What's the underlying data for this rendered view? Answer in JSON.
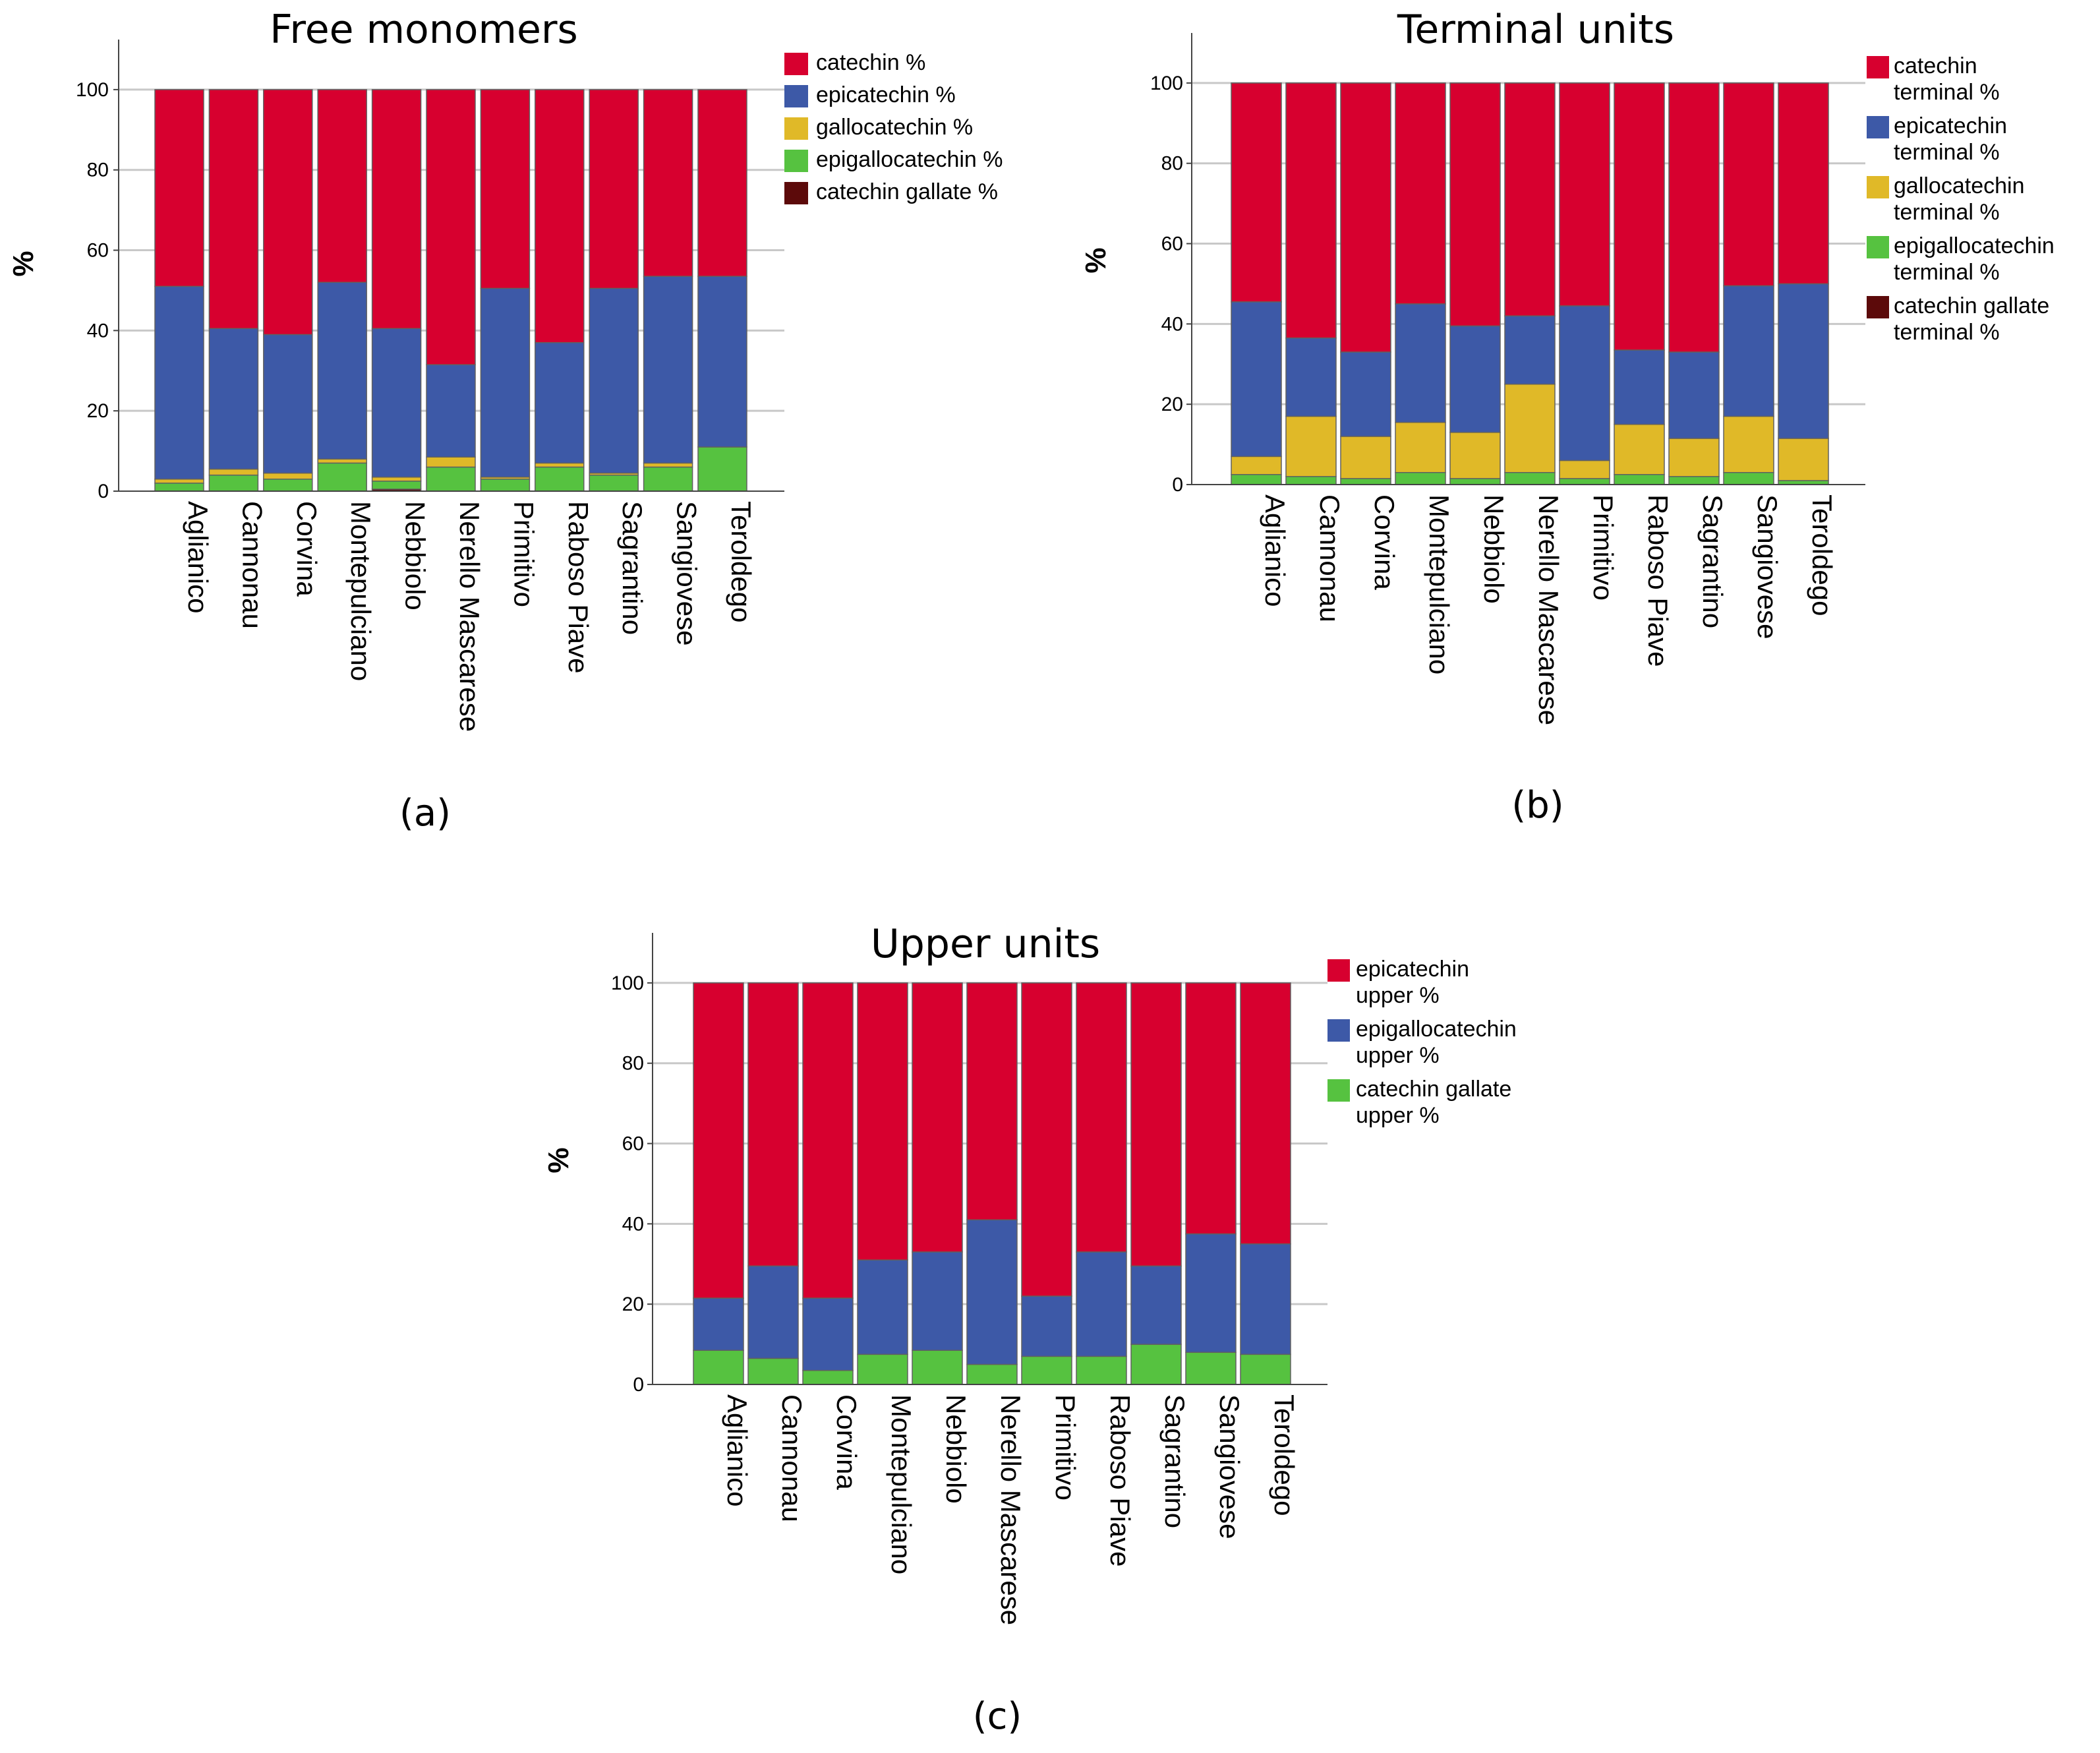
{
  "chart_data": [
    {
      "id": "a",
      "type": "bar",
      "stacked": true,
      "normalized": true,
      "title": "Free monomers",
      "caption": "(a)",
      "xlabel": "",
      "ylabel": "%",
      "ylim": [
        0,
        110
      ],
      "yticks": [
        0,
        20,
        40,
        60,
        80,
        100
      ],
      "categories": [
        "Aglianico",
        "Cannonau",
        "Corvina",
        "Montepulciano",
        "Nebbiolo",
        "Nerello Mascarese",
        "Primitivo",
        "Raboso Piave",
        "Sagrantino",
        "Sangiovese",
        "Teroldego"
      ],
      "series": [
        {
          "name": "catechin gallate %",
          "color": "#5c0a0a",
          "values": [
            0,
            0,
            0,
            0,
            0.5,
            0,
            0,
            0,
            0,
            0,
            0
          ]
        },
        {
          "name": "epigallocatechin %",
          "color": "#56c240",
          "values": [
            2,
            4,
            3,
            7,
            2,
            6,
            3,
            6,
            4,
            6,
            11
          ]
        },
        {
          "name": "gallocatechin %",
          "color": "#e0b928",
          "values": [
            1,
            1.5,
            1.5,
            1,
            1,
            2.5,
            0.5,
            1,
            0.5,
            1,
            0
          ]
        },
        {
          "name": "epicatechin %",
          "color": "#3d59a7",
          "values": [
            48,
            35,
            34.5,
            44,
            37,
            23,
            47,
            30,
            46,
            46.5,
            42.5
          ]
        },
        {
          "name": "catechin %",
          "color": "#d7002f",
          "values": [
            49,
            59.5,
            61,
            48,
            59.5,
            68.5,
            49.5,
            63,
            49.5,
            46.5,
            46.5
          ]
        }
      ],
      "legend": [
        "catechin %",
        "epicatechin %",
        "gallocatechin %",
        "epigallocatechin %",
        "catechin gallate %"
      ],
      "legend_position": "top-right, outside plot",
      "grid": true
    },
    {
      "id": "b",
      "type": "bar",
      "stacked": true,
      "normalized": true,
      "title": "Terminal units",
      "caption": "(b)",
      "xlabel": "",
      "ylabel": "%",
      "ylim": [
        0,
        110
      ],
      "yticks": [
        0,
        20,
        40,
        60,
        80,
        100
      ],
      "categories": [
        "Aglianico",
        "Cannonau",
        "Corvina",
        "Montepulciano",
        "Nebbiolo",
        "Nerello Mascarese",
        "Primitivo",
        "Raboso Piave",
        "Sagrantino",
        "Sangiovese",
        "Teroldego"
      ],
      "series": [
        {
          "name": "catechin gallate terminal %",
          "color": "#5c0a0a",
          "values": [
            0,
            0,
            0,
            0,
            0,
            0,
            0,
            0,
            0,
            0,
            0
          ]
        },
        {
          "name": "epigallocatechin terminal %",
          "color": "#56c240",
          "values": [
            2.5,
            2,
            1.5,
            3,
            1.5,
            3,
            1.5,
            2.5,
            2,
            3,
            1
          ]
        },
        {
          "name": "gallocatechin terminal %",
          "color": "#e0b928",
          "values": [
            4.5,
            15,
            10.5,
            12.5,
            11.5,
            22,
            4.5,
            12.5,
            9.5,
            14,
            10.5
          ]
        },
        {
          "name": "epicatechin terminal %",
          "color": "#3d59a7",
          "values": [
            38.5,
            19.5,
            21,
            29.5,
            26.5,
            17,
            38.5,
            18.5,
            21.5,
            32.5,
            38.5
          ]
        },
        {
          "name": "catechin terminal %",
          "color": "#d7002f",
          "values": [
            54.5,
            63.5,
            67,
            55,
            60.5,
            58,
            55.5,
            66.5,
            67,
            50.5,
            50
          ]
        }
      ],
      "legend": [
        "catechin terminal %",
        "epicatechin terminal %",
        "gallocatechin terminal %",
        "epigallocatechin terminal %",
        "catechin gallate terminal %"
      ],
      "legend_position": "top-right, outside plot",
      "grid": true
    },
    {
      "id": "c",
      "type": "bar",
      "stacked": true,
      "normalized": true,
      "title": "Upper units",
      "caption": "(c)",
      "xlabel": "",
      "ylabel": "%",
      "ylim": [
        0,
        110
      ],
      "yticks": [
        0,
        20,
        40,
        60,
        80,
        100
      ],
      "categories": [
        "Aglianico",
        "Cannonau",
        "Corvina",
        "Montepulciano",
        "Nebbiolo",
        "Nerello Mascarese",
        "Primitivo",
        "Raboso Piave",
        "Sagrantino",
        "Sangiovese",
        "Teroldego"
      ],
      "series": [
        {
          "name": "catechin gallate upper %",
          "color": "#56c240",
          "values": [
            8.5,
            6.5,
            3.5,
            7.5,
            8.5,
            5,
            7,
            7,
            10,
            8,
            7.5
          ]
        },
        {
          "name": "epigallocatechin upper %",
          "color": "#3d59a7",
          "values": [
            13,
            23,
            18,
            23.5,
            24.5,
            36,
            15,
            26,
            19.5,
            29.5,
            27.5
          ]
        },
        {
          "name": "epicatechin upper %",
          "color": "#d7002f",
          "values": [
            78.5,
            70.5,
            78.5,
            69,
            67,
            59,
            78,
            67,
            70.5,
            62.5,
            65
          ]
        }
      ],
      "legend": [
        "epicatechin upper %",
        "epigallocatechin upper %",
        "catechin gallate upper %"
      ],
      "legend_position": "top-right, outside plot",
      "grid": true
    }
  ]
}
